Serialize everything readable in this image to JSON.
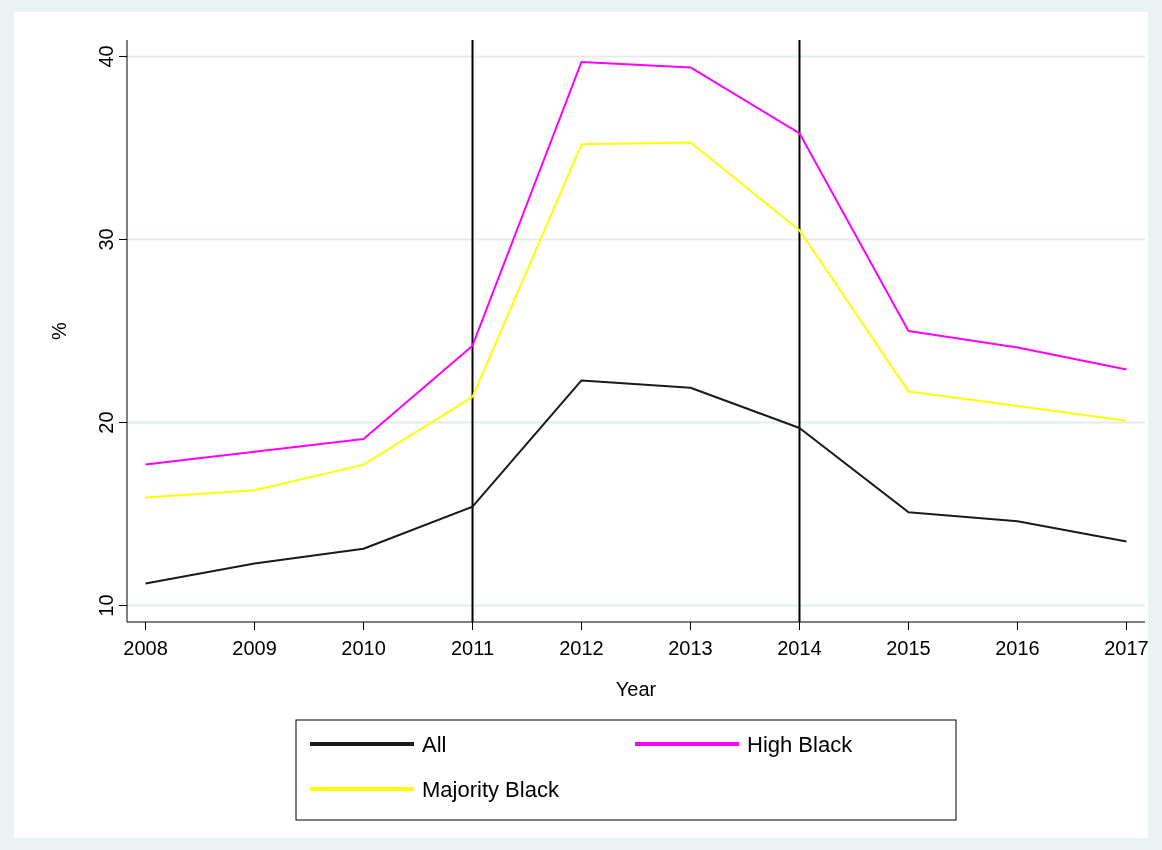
{
  "chart_data": {
    "type": "line",
    "xlabel": "Year",
    "ylabel": "%",
    "x": [
      2008,
      2009,
      2010,
      2011,
      2012,
      2013,
      2014,
      2015,
      2016,
      2017
    ],
    "series": [
      {
        "name": "All",
        "color": "#1a1a1a",
        "values": [
          11.2,
          12.3,
          13.1,
          15.4,
          22.3,
          21.9,
          19.7,
          15.1,
          14.6,
          13.5
        ]
      },
      {
        "name": "High Black",
        "color": "#ff00ff",
        "values": [
          17.7,
          18.4,
          19.1,
          24.2,
          39.7,
          39.4,
          35.8,
          25.0,
          24.1,
          22.9
        ]
      },
      {
        "name": "Majority Black",
        "color": "#ffff00",
        "values": [
          15.9,
          16.3,
          17.7,
          21.4,
          35.2,
          35.3,
          30.5,
          21.7,
          20.9,
          20.1
        ]
      }
    ],
    "xlim": [
      2007.83,
      2017.17
    ],
    "xticks": [
      2008,
      2009,
      2010,
      2011,
      2012,
      2013,
      2014,
      2015,
      2016,
      2017
    ],
    "ylim": [
      9.1,
      40.9
    ],
    "yticks": [
      10,
      20,
      30,
      40
    ],
    "grid": "y",
    "legend": "bottom",
    "marker": "none",
    "line_style": "solid",
    "ref_lines": [
      {
        "axis": "x",
        "value": 2011,
        "color": "#000000"
      },
      {
        "axis": "x",
        "value": 2014,
        "color": "#000000"
      }
    ]
  }
}
